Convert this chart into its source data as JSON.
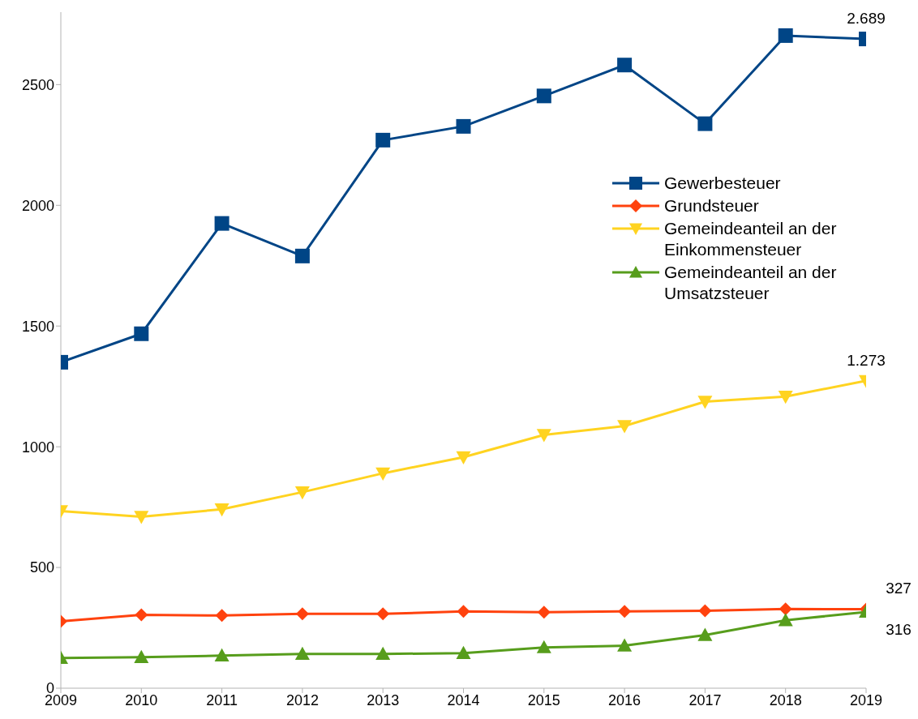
{
  "chart_data": {
    "type": "line",
    "categories": [
      "2009",
      "2010",
      "2011",
      "2012",
      "2013",
      "2014",
      "2015",
      "2016",
      "2017",
      "2018",
      "2019"
    ],
    "ylim": [
      0,
      2800
    ],
    "yticks": [
      0,
      500,
      1000,
      1500,
      2000,
      2500
    ],
    "grid": false,
    "legend": "right",
    "series": [
      {
        "name": "Gewerbesteuer",
        "color": "#004586",
        "marker": "square",
        "values": [
          1350,
          1468,
          1925,
          1790,
          2270,
          2327,
          2453,
          2581,
          2338,
          2703,
          2689
        ],
        "value_labels": [
          null,
          null,
          null,
          null,
          null,
          null,
          null,
          null,
          null,
          null,
          "2.689"
        ]
      },
      {
        "name": "Grundsteuer",
        "color": "#ff420e",
        "marker": "diamond",
        "values": [
          277,
          304,
          301,
          308,
          308,
          318,
          315,
          318,
          321,
          328,
          327
        ],
        "value_labels": [
          null,
          null,
          null,
          null,
          null,
          null,
          null,
          null,
          null,
          null,
          "327"
        ]
      },
      {
        "name": "Gemeindeanteil an der Einkommensteuer",
        "color": "#ffd320",
        "marker": "triangle-down",
        "values": [
          734,
          710,
          741,
          812,
          890,
          957,
          1049,
          1086,
          1187,
          1208,
          1273
        ],
        "value_labels": [
          null,
          null,
          null,
          null,
          null,
          null,
          null,
          null,
          null,
          null,
          "1.273"
        ]
      },
      {
        "name": "Gemeindeanteil an der Umsatzsteuer",
        "color": "#579d1c",
        "marker": "triangle",
        "values": [
          125,
          128,
          135,
          142,
          142,
          145,
          169,
          176,
          220,
          281,
          316
        ],
        "value_labels": [
          null,
          null,
          null,
          null,
          null,
          null,
          null,
          null,
          null,
          null,
          "316"
        ]
      }
    ]
  }
}
